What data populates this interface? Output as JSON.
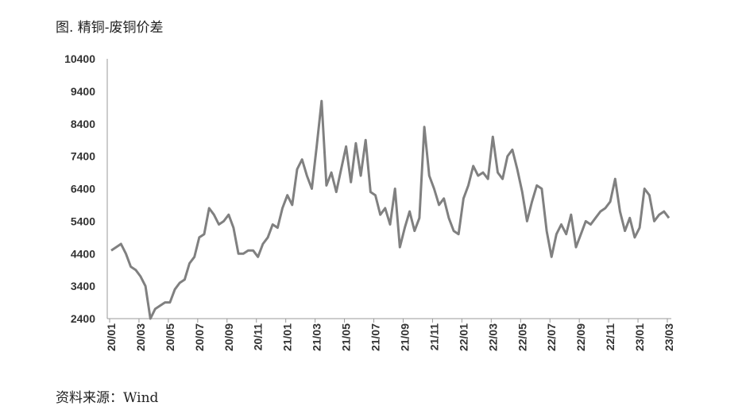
{
  "chart_data": {
    "type": "line",
    "title": "图. 精铜-废铜价差",
    "source": "资料来源：Wind",
    "categories": [
      "20/01",
      null,
      null,
      null,
      null,
      null,
      "20/03",
      null,
      null,
      null,
      null,
      null,
      "20/05",
      null,
      null,
      null,
      null,
      null,
      "20/07",
      null,
      null,
      null,
      null,
      null,
      "20/09",
      null,
      null,
      null,
      null,
      null,
      "20/11",
      null,
      null,
      null,
      null,
      null,
      "21/01",
      null,
      null,
      null,
      null,
      null,
      "21/03",
      null,
      null,
      null,
      null,
      null,
      "21/05",
      null,
      null,
      null,
      null,
      null,
      "21/07",
      null,
      null,
      null,
      null,
      null,
      "21/09",
      null,
      null,
      null,
      null,
      null,
      "21/11",
      null,
      null,
      null,
      null,
      null,
      "22/01",
      null,
      null,
      null,
      null,
      null,
      "22/03",
      null,
      null,
      null,
      null,
      null,
      "22/05",
      null,
      null,
      null,
      null,
      null,
      "22/07",
      null,
      null,
      null,
      null,
      null,
      "22/09",
      null,
      null,
      null,
      null,
      null,
      "22/11",
      null,
      null,
      null,
      null,
      null,
      "23/01",
      null,
      null,
      null,
      null,
      null,
      "23/03"
    ],
    "values": [
      4500,
      4600,
      4700,
      4400,
      4000,
      3900,
      3700,
      3400,
      2400,
      2700,
      2800,
      2900,
      2900,
      3300,
      3500,
      3600,
      4100,
      4300,
      4900,
      5000,
      5800,
      5600,
      5300,
      5400,
      5600,
      5200,
      4400,
      4400,
      4500,
      4500,
      4300,
      4700,
      4900,
      5300,
      5200,
      5800,
      6200,
      5900,
      7000,
      7300,
      6800,
      6400,
      7700,
      9100,
      6500,
      6900,
      6300,
      7000,
      7700,
      6600,
      7800,
      6800,
      7900,
      6300,
      6200,
      5600,
      5800,
      5300,
      6400,
      4600,
      5200,
      5700,
      5100,
      5500,
      8300,
      6800,
      6400,
      5900,
      6100,
      5500,
      5100,
      5000,
      6100,
      6500,
      7100,
      6800,
      6900,
      6700,
      8000,
      6900,
      6700,
      7400,
      7600,
      7000,
      6300,
      5400,
      6000,
      6500,
      6400,
      5100,
      4300,
      5000,
      5300,
      5000,
      5600,
      4600,
      5000,
      5400,
      5300,
      5500,
      5700,
      5800,
      6000,
      6700,
      5700,
      5100,
      5500,
      4900,
      5200,
      6400,
      6200,
      5400,
      5600,
      5700,
      5500
    ],
    "color": "#808080",
    "ylim": [
      2400,
      10400
    ],
    "yticks": [
      2400,
      3400,
      4400,
      5400,
      6400,
      7400,
      8400,
      9400,
      10400
    ],
    "grid": false
  }
}
